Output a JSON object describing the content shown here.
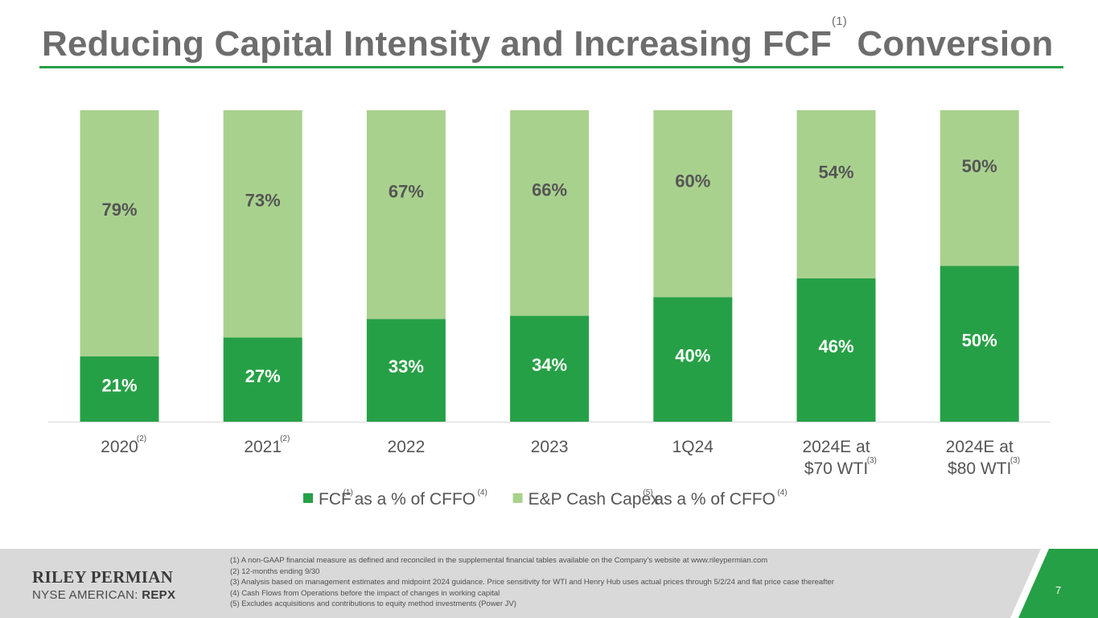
{
  "title": {
    "main": "Reducing Capital Intensity and Increasing FCF",
    "sup": "(1)",
    "suffix": " Conversion"
  },
  "chart_data": {
    "type": "bar",
    "stacked": true,
    "categories": [
      {
        "label": [
          "2020"
        ],
        "sup": "(2)"
      },
      {
        "label": [
          "2021"
        ],
        "sup": "(2)"
      },
      {
        "label": [
          "2022"
        ],
        "sup": ""
      },
      {
        "label": [
          "2023"
        ],
        "sup": ""
      },
      {
        "label": [
          "1Q24"
        ],
        "sup": ""
      },
      {
        "label": [
          "2024E at",
          "$70 WTI"
        ],
        "sup": "(3)"
      },
      {
        "label": [
          "2024E at",
          "$80 WTI"
        ],
        "sup": "(3)"
      }
    ],
    "series": [
      {
        "name": "FCF as a % of CFFO",
        "color": "#26a046",
        "label_color": "#ffffff",
        "values": [
          21,
          27,
          33,
          34,
          40,
          46,
          50
        ],
        "labels": [
          "21%",
          "27%",
          "33%",
          "34%",
          "40%",
          "46%",
          "50%"
        ]
      },
      {
        "name": "E&P Cash Capex as a % of CFFO",
        "color": "#a9d18e",
        "label_color": "#555555",
        "values": [
          79,
          73,
          67,
          66,
          60,
          54,
          50
        ],
        "labels": [
          "79%",
          "73%",
          "67%",
          "66%",
          "60%",
          "54%",
          "50%"
        ]
      }
    ],
    "ylim": [
      0,
      100
    ],
    "grid": false,
    "legend_position": "bottom-center",
    "legend": [
      {
        "color": "#26a046",
        "parts": [
          "FCF",
          "(1)",
          " as a % of CFFO",
          "(4)"
        ]
      },
      {
        "color": "#a9d18e",
        "parts": [
          "E&P Cash Capex",
          "(5)",
          " as a % of CFFO",
          "(4)"
        ]
      }
    ]
  },
  "footer": {
    "company": "RILEY PERMIAN",
    "exchange": "NYSE AMERICAN: ",
    "ticker": "REPX",
    "notes": [
      "(1)  A non-GAAP financial measure as defined and reconciled in the supplemental financial tables available on the Company’s website at www.rileypermian.com",
      "(2)  12-months ending 9/30",
      "(3)  Analysis based on management estimates and midpoint 2024 guidance. Price sensitivity for WTI and Henry Hub uses actual prices through 5/2/24 and flat price case thereafter",
      "(4)  Cash Flows from Operations before the impact of changes in working capital",
      "(5)  Excludes acquisitions and contributions to equity method investments (Power JV)"
    ],
    "page_number": "7",
    "accent_color": "#26a046"
  }
}
